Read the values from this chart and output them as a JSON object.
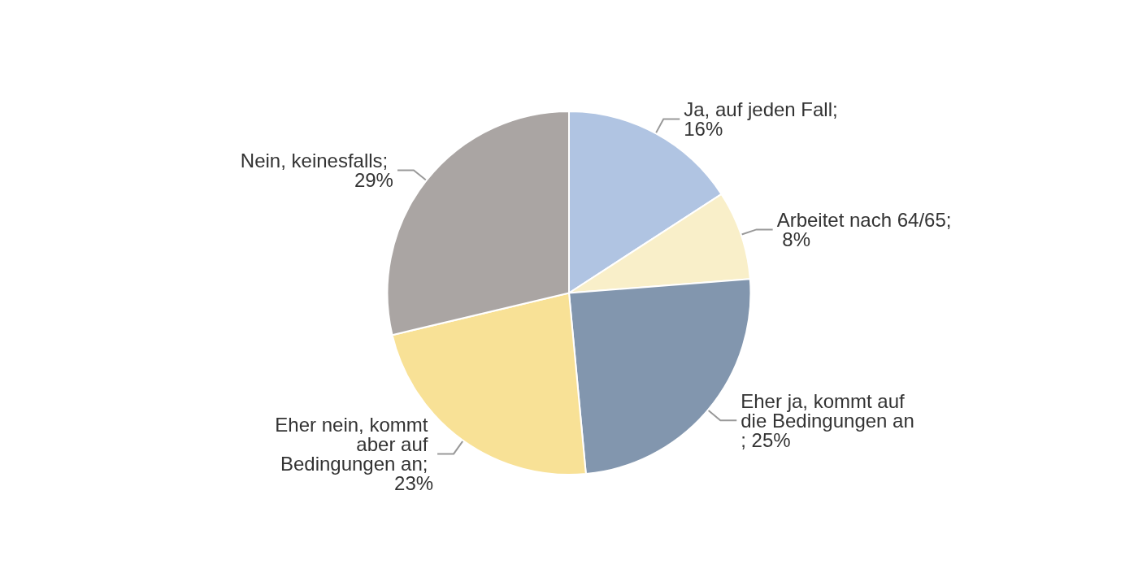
{
  "chart_data": {
    "type": "pie",
    "categories": [
      null,
      null,
      null,
      null,
      null
    ],
    "values": [
      16,
      8,
      25,
      23,
      29
    ],
    "value_labels": [
      "Ja, auf jeden Fall; 16%",
      "Arbeitet nach 64/65; 8%",
      "Eher ja, kommt auf die Bedingungen an; 25%",
      "Eher nein, kommt aber auf Bedingungen an; 23%",
      "Nein, keinesfalls; 29%"
    ],
    "colors": [
      "#b0c4e2",
      "#f9efc9",
      "#8296ae",
      "#f8e196",
      "#aaa5a3"
    ]
  }
}
